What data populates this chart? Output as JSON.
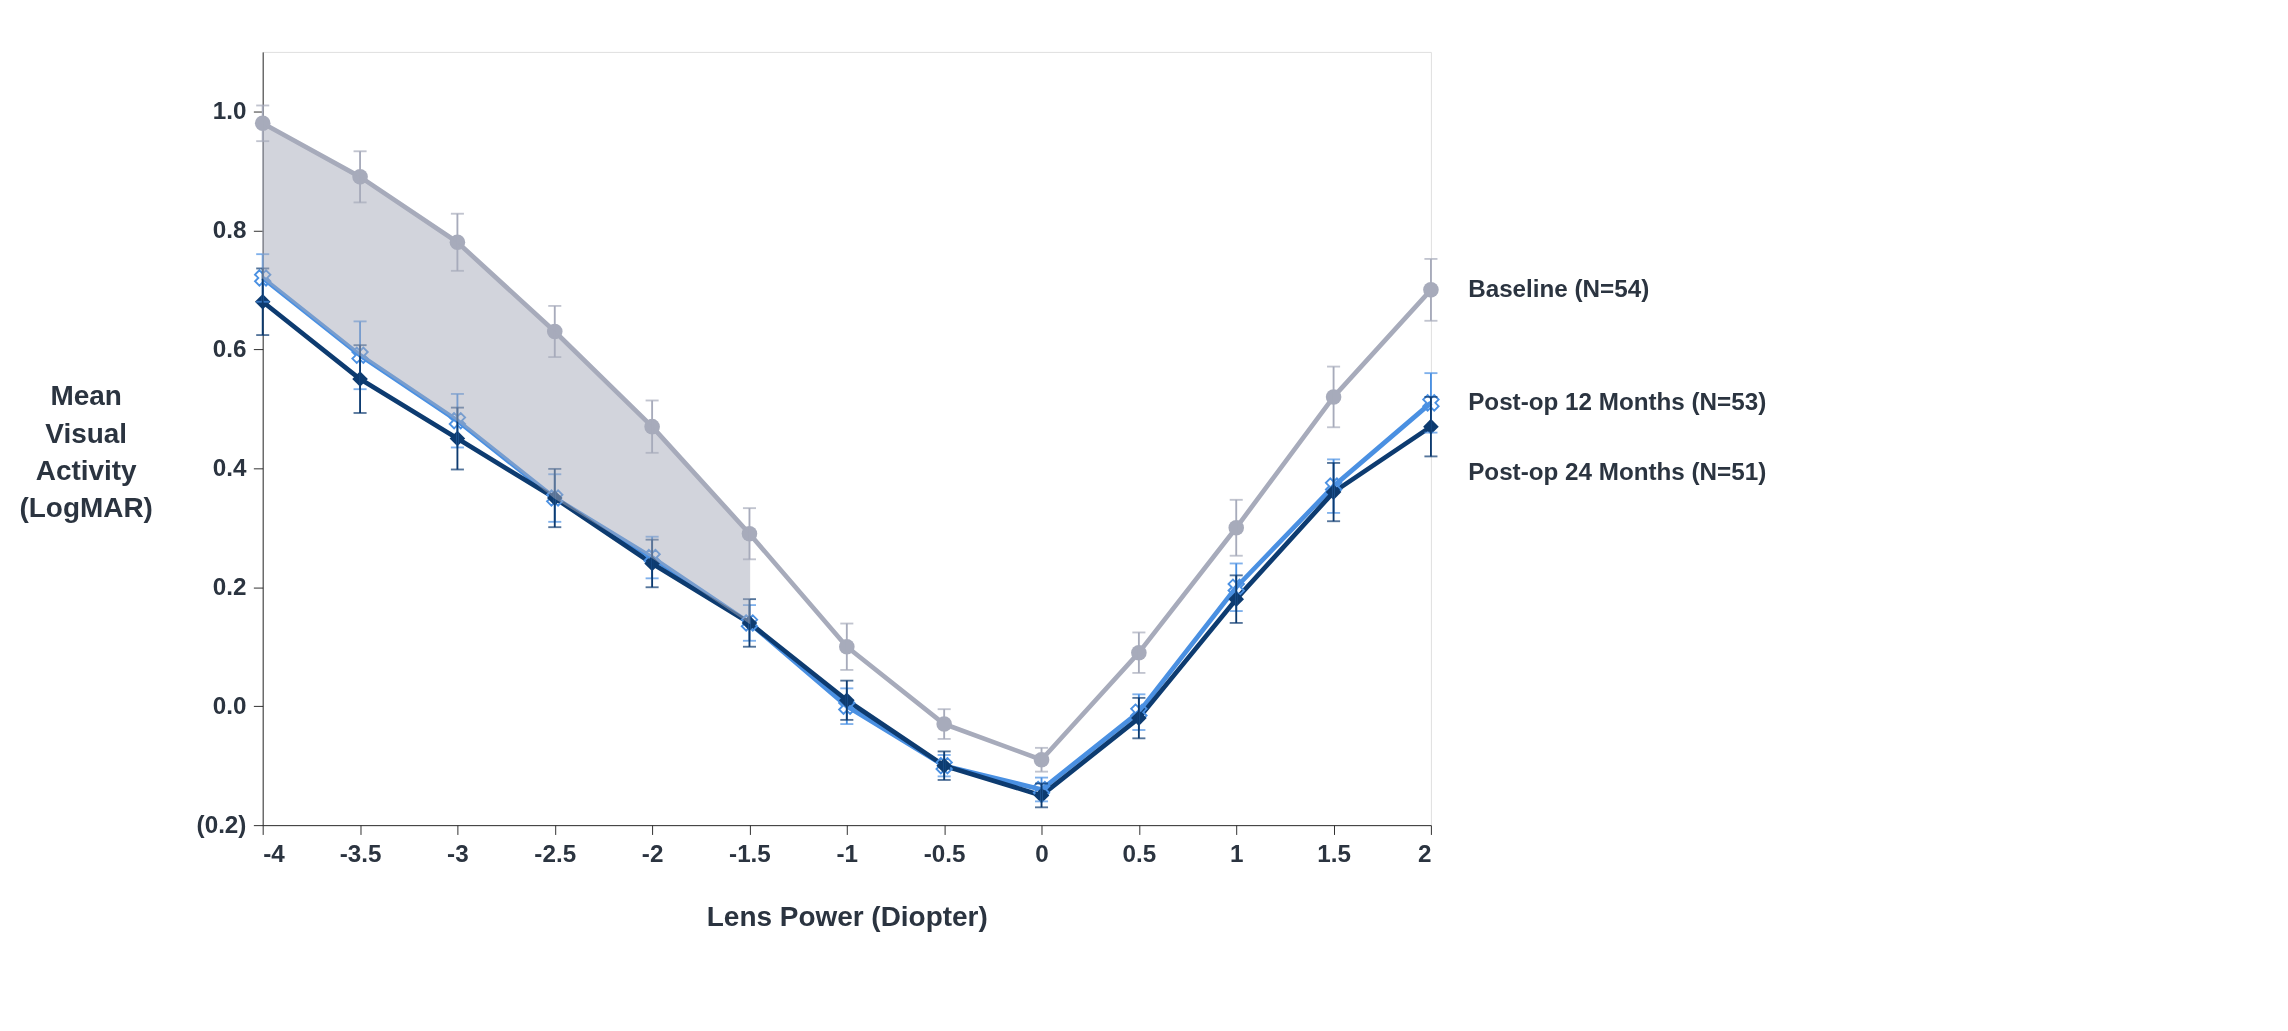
{
  "chart_data": {
    "type": "line",
    "xlabel": "Lens Power (Diopter)",
    "ylabel": "Mean Visual Activity (LogMAR)",
    "x": [
      -4,
      -3.5,
      -3,
      -2.5,
      -2,
      -1.5,
      -1,
      -0.5,
      0,
      0.5,
      1,
      1.5,
      2
    ],
    "xlim": [
      -4,
      2
    ],
    "xticks": [
      -4,
      -3.5,
      -3,
      -2.5,
      -2,
      -1.5,
      -1,
      -0.5,
      0,
      0.5,
      1,
      1.5,
      2
    ],
    "ylim": [
      -0.2,
      1.1
    ],
    "yticks": [
      {
        "value": -0.2,
        "label": "(0.2)"
      },
      {
        "value": 0,
        "label": "0.0"
      },
      {
        "value": 0.2,
        "label": "0.2"
      },
      {
        "value": 0.4,
        "label": "0.4"
      },
      {
        "value": 0.6,
        "label": "0.6"
      },
      {
        "value": 0.8,
        "label": "0.8"
      },
      {
        "value": 1.0,
        "label": "1.0"
      }
    ],
    "grid": false,
    "legend": "right",
    "line_style": "solid",
    "series": [
      {
        "name": "Baseline (N=54)",
        "color": "#a7abbb",
        "marker": "circle",
        "values": [
          0.98,
          0.89,
          0.78,
          0.63,
          0.47,
          0.29,
          0.1,
          -0.03,
          -0.09,
          0.09,
          0.3,
          0.52,
          0.7
        ],
        "lower": [
          0.72,
          0.59,
          0.48,
          0.35,
          0.25,
          0.14,
          null,
          null,
          null,
          null,
          null,
          null,
          null
        ],
        "upper": [
          0.98,
          0.89,
          0.78,
          0.63,
          0.47,
          0.29,
          null,
          null,
          null,
          null,
          null,
          null,
          null
        ],
        "errors": [
          0.03,
          0.043,
          0.048,
          0.043,
          0.044,
          0.043,
          0.039,
          0.025,
          0.02,
          0.034,
          0.047,
          0.051,
          0.052
        ]
      },
      {
        "name": "Post-op 12 Months (N=53)",
        "color": "#4a90e2",
        "marker": "cross",
        "values": [
          0.72,
          0.59,
          0.48,
          0.35,
          0.25,
          0.14,
          0.0,
          -0.1,
          -0.14,
          -0.01,
          0.2,
          0.37,
          0.51
        ],
        "errors": [
          0.04,
          0.057,
          0.045,
          0.04,
          0.035,
          0.03,
          0.03,
          0.018,
          0.02,
          0.03,
          0.04,
          0.045,
          0.05
        ]
      },
      {
        "name": "Post-op 24 Months (N=51)",
        "color": "#0d3b70",
        "marker": "diamond",
        "values": [
          0.68,
          0.55,
          0.45,
          0.35,
          0.24,
          0.14,
          0.01,
          -0.1,
          -0.15,
          -0.02,
          0.18,
          0.36,
          0.47
        ],
        "errors": [
          0.056,
          0.057,
          0.052,
          0.049,
          0.04,
          0.04,
          0.033,
          0.024,
          0.02,
          0.034,
          0.04,
          0.049,
          0.05
        ]
      }
    ]
  }
}
